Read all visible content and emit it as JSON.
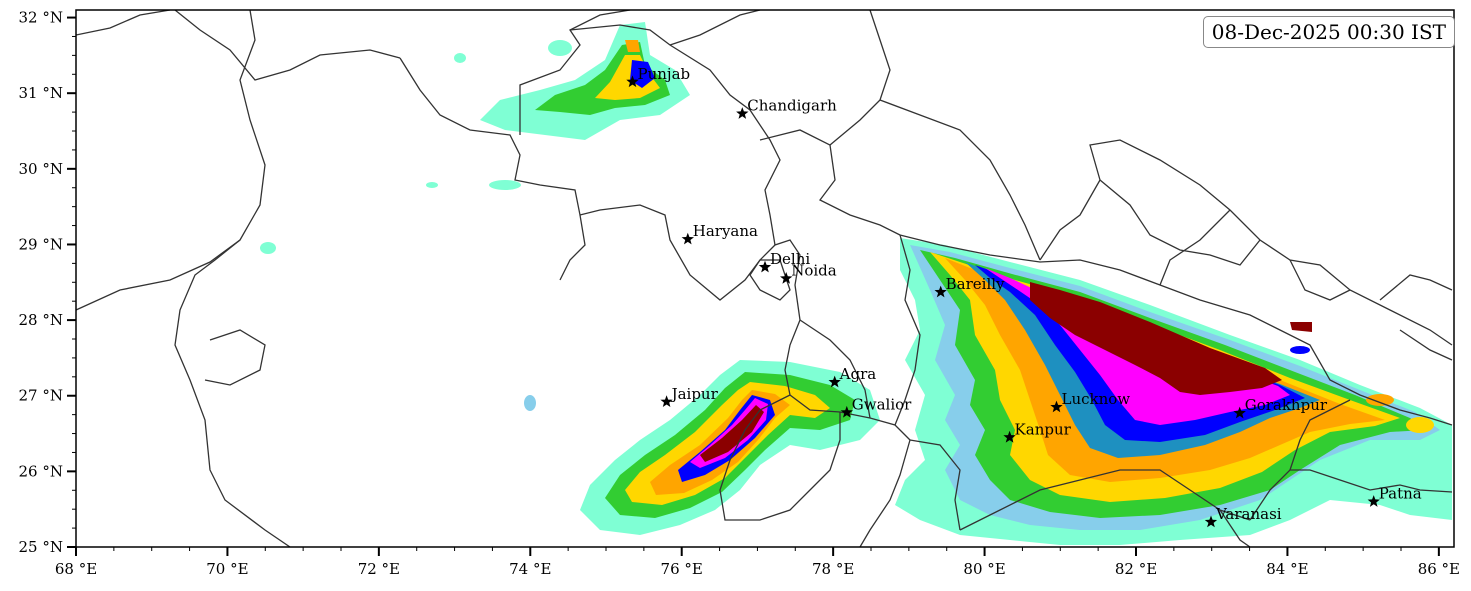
{
  "timestamp": "08-Dec-2025 00:30 IST",
  "colors": {
    "aqua": "#7fffd4",
    "skyblue": "#87ceeb",
    "green": "#32cd32",
    "yellow": "#ffd700",
    "orange": "#ffa500",
    "steelblue": "#1e90c0",
    "blue": "#0000ff",
    "magenta": "#ff00ff",
    "maroon": "#8b0000",
    "border": "#333333"
  },
  "axes": {
    "lon_range": [
      68,
      86.2
    ],
    "lat_range": [
      25,
      32.1
    ],
    "x_ticks": [
      {
        "value": 68,
        "label": "68 °E"
      },
      {
        "value": 70,
        "label": "70 °E"
      },
      {
        "value": 72,
        "label": "72 °E"
      },
      {
        "value": 74,
        "label": "74 °E"
      },
      {
        "value": 76,
        "label": "76 °E"
      },
      {
        "value": 78,
        "label": "78 °E"
      },
      {
        "value": 80,
        "label": "80 °E"
      },
      {
        "value": 82,
        "label": "82 °E"
      },
      {
        "value": 84,
        "label": "84 °E"
      },
      {
        "value": 86,
        "label": "86 °E"
      }
    ],
    "y_ticks": [
      {
        "value": 25,
        "label": "25 °N"
      },
      {
        "value": 26,
        "label": "26 °N"
      },
      {
        "value": 27,
        "label": "27 °N"
      },
      {
        "value": 28,
        "label": "28 °N"
      },
      {
        "value": 29,
        "label": "29 °N"
      },
      {
        "value": 30,
        "label": "30 °N"
      },
      {
        "value": 31,
        "label": "31 °N"
      },
      {
        "value": 32,
        "label": "32 °N"
      }
    ]
  },
  "cities": [
    {
      "name": "Punjab",
      "lon": 75.35,
      "lat": 31.15
    },
    {
      "name": "Chandigarh",
      "lon": 76.8,
      "lat": 30.73
    },
    {
      "name": "Haryana",
      "lon": 76.08,
      "lat": 29.07
    },
    {
      "name": "Delhi",
      "lon": 77.1,
      "lat": 28.7
    },
    {
      "name": "Noida",
      "lon": 77.38,
      "lat": 28.55
    },
    {
      "name": "Bareilly",
      "lon": 79.42,
      "lat": 28.37
    },
    {
      "name": "Agra",
      "lon": 78.02,
      "lat": 27.18
    },
    {
      "name": "Jaipur",
      "lon": 75.8,
      "lat": 26.92
    },
    {
      "name": "Gwalior",
      "lon": 78.18,
      "lat": 26.78
    },
    {
      "name": "Lucknow",
      "lon": 80.95,
      "lat": 26.85
    },
    {
      "name": "Gorakhpur",
      "lon": 83.37,
      "lat": 26.77
    },
    {
      "name": "Kanpur",
      "lon": 80.33,
      "lat": 26.45
    },
    {
      "name": "Patna",
      "lon": 85.14,
      "lat": 25.6
    },
    {
      "name": "Varanasi",
      "lon": 82.99,
      "lat": 25.33
    }
  ]
}
